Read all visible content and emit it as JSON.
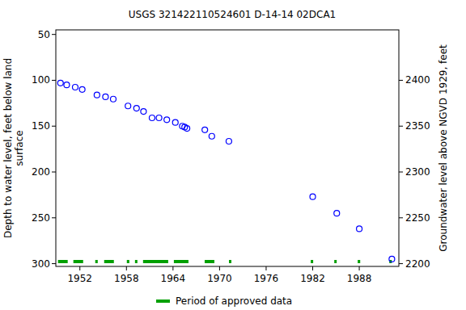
{
  "chart_data": {
    "type": "scatter",
    "title": "USGS 321422110524601 D-14-14 02DCA1",
    "ylabel": [
      "Depth to water level, feet below land",
      "surface"
    ],
    "y2label": "Groundwater level above NGVD 1929, feet",
    "xlim": [
      1948.9,
      1993.1
    ],
    "xticks": [
      1952,
      1958,
      1964,
      1970,
      1976,
      1982,
      1988
    ],
    "ylim": [
      303,
      45
    ],
    "yticks": [
      50,
      100,
      150,
      200,
      250,
      300
    ],
    "y2lim": [
      2197,
      2455
    ],
    "y2ticks": [
      2200,
      2250,
      2300,
      2350,
      2400
    ],
    "series": [
      {
        "color": "#0000ff",
        "marker": "open-circle",
        "x": [
          1949.5,
          1950.3,
          1951.4,
          1952.3,
          1954.2,
          1955.3,
          1956.3,
          1958.2,
          1959.3,
          1960.2,
          1961.3,
          1962.2,
          1963.2,
          1964.3,
          1965.2,
          1965.5,
          1965.8,
          1968.1,
          1969.0,
          1971.2,
          1982.0,
          1985.1,
          1988.0,
          1992.2
        ],
        "values": [
          103,
          105,
          107.5,
          110,
          116,
          118,
          120.5,
          128,
          130.5,
          134,
          141,
          141,
          143,
          146,
          150,
          151,
          152.5,
          154,
          161,
          166.5,
          227,
          245,
          262,
          295
        ]
      }
    ],
    "periods": {
      "name": "Period of approved data",
      "color": "#00a000",
      "ranges": [
        [
          1949.18,
          1950.43
        ],
        [
          1951.16,
          1952.42
        ],
        [
          1953.98,
          1954.3
        ],
        [
          1955.13,
          1956.38
        ],
        [
          1958.05,
          1958.37
        ],
        [
          1959.1,
          1959.41
        ],
        [
          1960.14,
          1963.38
        ],
        [
          1964.11,
          1965.99
        ],
        [
          1968.08,
          1969.33
        ],
        [
          1971.21,
          1971.52
        ],
        [
          1981.75,
          1982.06
        ],
        [
          1984.78,
          1985.09
        ],
        [
          1987.8,
          1988.12
        ],
        [
          1991.87,
          1992.19
        ]
      ]
    }
  }
}
